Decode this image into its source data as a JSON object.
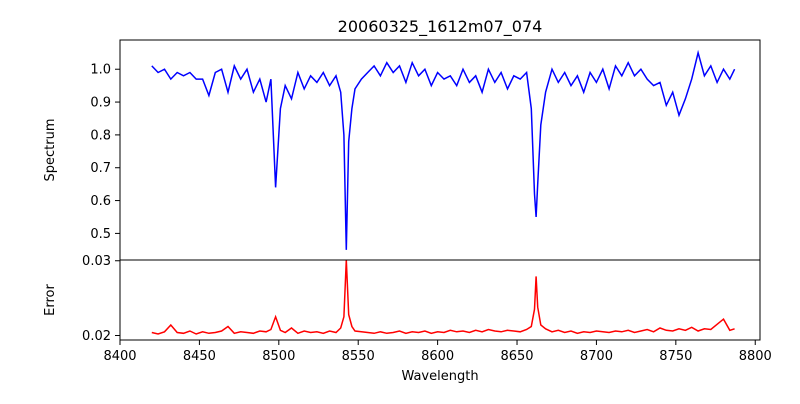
{
  "chart_data": [
    {
      "type": "line",
      "title": "20060325_1612m07_074",
      "xlabel": "",
      "ylabel": "Spectrum",
      "xlim": [
        8400,
        8803
      ],
      "ylim": [
        0.419,
        1.089
      ],
      "xticks": [
        8400,
        8450,
        8500,
        8550,
        8600,
        8650,
        8700,
        8750,
        8800
      ],
      "yticks": [
        "0.5",
        "0.6",
        "0.7",
        "0.8",
        "0.9",
        "1.0"
      ],
      "color": "#0000ff",
      "grid": false,
      "series": [
        {
          "name": "Spectrum",
          "y_ref": "spectrum"
        }
      ]
    },
    {
      "type": "line",
      "title": "",
      "xlabel": "Wavelength",
      "ylabel": "Error",
      "xlim": [
        8400,
        8803
      ],
      "ylim": [
        0.0194,
        0.0301
      ],
      "xticks": [
        "8400",
        "8450",
        "8500",
        "8550",
        "8600",
        "8650",
        "8700",
        "8750",
        "8800"
      ],
      "yticks": [
        "0.02",
        "0.03"
      ],
      "color": "#ff0000",
      "grid": false,
      "series": [
        {
          "name": "Error",
          "y_ref": "error"
        }
      ]
    }
  ],
  "x": [
    8420,
    8424,
    8428,
    8432,
    8436,
    8440,
    8444,
    8448,
    8452,
    8456,
    8460,
    8464,
    8468,
    8472,
    8476,
    8480,
    8484,
    8488,
    8492,
    8495,
    8498,
    8501,
    8504,
    8508,
    8512,
    8516,
    8520,
    8524,
    8528,
    8532,
    8536,
    8539,
    8541,
    8542.5,
    8544,
    8546,
    8548,
    8552,
    8556,
    8560,
    8564,
    8568,
    8572,
    8576,
    8580,
    8584,
    8588,
    8592,
    8596,
    8600,
    8604,
    8608,
    8612,
    8616,
    8620,
    8624,
    8628,
    8632,
    8636,
    8640,
    8644,
    8648,
    8652,
    8656,
    8659,
    8661,
    8662,
    8663,
    8665,
    8668,
    8672,
    8676,
    8680,
    8684,
    8688,
    8692,
    8696,
    8700,
    8704,
    8708,
    8712,
    8716,
    8720,
    8724,
    8728,
    8732,
    8736,
    8740,
    8744,
    8748,
    8752,
    8756,
    8760,
    8764,
    8768,
    8772,
    8776,
    8780,
    8784,
    8787
  ],
  "spectrum": [
    1.01,
    0.99,
    1.0,
    0.97,
    0.99,
    0.98,
    0.99,
    0.97,
    0.97,
    0.92,
    0.99,
    1.0,
    0.93,
    1.01,
    0.97,
    1.0,
    0.93,
    0.97,
    0.9,
    0.97,
    0.64,
    0.88,
    0.95,
    0.91,
    0.99,
    0.94,
    0.98,
    0.96,
    0.99,
    0.95,
    0.98,
    0.93,
    0.8,
    0.45,
    0.78,
    0.88,
    0.94,
    0.97,
    0.99,
    1.01,
    0.98,
    1.02,
    0.99,
    1.01,
    0.96,
    1.02,
    0.98,
    1.0,
    0.95,
    0.99,
    0.97,
    0.98,
    0.95,
    1.0,
    0.96,
    0.98,
    0.93,
    1.0,
    0.96,
    0.99,
    0.94,
    0.98,
    0.97,
    0.99,
    0.88,
    0.62,
    0.55,
    0.65,
    0.83,
    0.93,
    1.0,
    0.96,
    0.99,
    0.95,
    0.98,
    0.93,
    0.99,
    0.96,
    1.0,
    0.94,
    1.01,
    0.98,
    1.02,
    0.98,
    1.0,
    0.97,
    0.95,
    0.96,
    0.89,
    0.93,
    0.86,
    0.91,
    0.97,
    1.05,
    0.98,
    1.01,
    0.96,
    1.0,
    0.97,
    1.0
  ],
  "error": [
    0.0204,
    0.0202,
    0.0205,
    0.0214,
    0.0204,
    0.0203,
    0.0206,
    0.0202,
    0.0205,
    0.0203,
    0.0204,
    0.0206,
    0.0212,
    0.0203,
    0.0205,
    0.0204,
    0.0203,
    0.0206,
    0.0205,
    0.0208,
    0.0225,
    0.0207,
    0.0204,
    0.021,
    0.0203,
    0.0206,
    0.0204,
    0.0205,
    0.0203,
    0.0206,
    0.0204,
    0.021,
    0.0225,
    0.0301,
    0.0228,
    0.0212,
    0.0206,
    0.0205,
    0.0204,
    0.0203,
    0.0205,
    0.0203,
    0.0204,
    0.0206,
    0.0203,
    0.0205,
    0.0204,
    0.0206,
    0.0203,
    0.0205,
    0.0204,
    0.0207,
    0.0205,
    0.0206,
    0.0204,
    0.0207,
    0.0205,
    0.0208,
    0.0206,
    0.0205,
    0.0207,
    0.0206,
    0.0205,
    0.0208,
    0.0212,
    0.0235,
    0.0279,
    0.0238,
    0.0214,
    0.0209,
    0.0205,
    0.0207,
    0.0204,
    0.0206,
    0.0203,
    0.0205,
    0.0204,
    0.0206,
    0.0205,
    0.0204,
    0.0206,
    0.0205,
    0.0207,
    0.0204,
    0.0206,
    0.0208,
    0.0205,
    0.021,
    0.0207,
    0.0206,
    0.0209,
    0.0207,
    0.0211,
    0.0206,
    0.0209,
    0.0208,
    0.0215,
    0.0222,
    0.0207,
    0.0209
  ]
}
